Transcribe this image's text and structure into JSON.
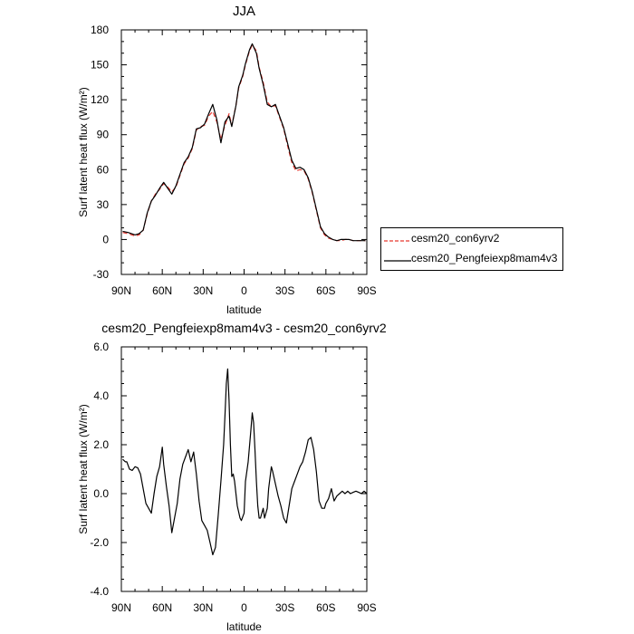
{
  "chart_data": [
    {
      "type": "line",
      "title": "JJA",
      "xlabel": "latitude",
      "ylabel": "Surf latent heat flux (W/m²)",
      "xlim": [
        90,
        -90
      ],
      "ylim": [
        -30,
        180
      ],
      "x_ticks": [
        90,
        60,
        30,
        0,
        -30,
        -60,
        -90
      ],
      "x_tick_labels": [
        "90N",
        "60N",
        "30N",
        "0",
        "30S",
        "60S",
        "90S"
      ],
      "y_ticks": [
        -30,
        0,
        30,
        60,
        90,
        120,
        150,
        180
      ],
      "y_tick_labels": [
        "-30",
        "0",
        "30",
        "60",
        "90",
        "120",
        "150",
        "180"
      ],
      "grid": false,
      "legend": "outside-right",
      "series": [
        {
          "name": "cesm20_con6yrv2",
          "color": "#e8372e",
          "dash": "dashed",
          "x": [
            89,
            85,
            80,
            77,
            74,
            71,
            68,
            65,
            62,
            59,
            56,
            53,
            50,
            47,
            44,
            41,
            38,
            35,
            32,
            29,
            26,
            23,
            20,
            17,
            14,
            11,
            9,
            6,
            4,
            1,
            -1,
            -4,
            -6,
            -9,
            -11,
            -14,
            -17,
            -20,
            -23,
            -26,
            -29,
            -32,
            -35,
            -38,
            -41,
            -44,
            -47,
            -50,
            -53,
            -56,
            -59,
            -62,
            -65,
            -68,
            -71,
            -74,
            -77,
            -80,
            -85,
            -89
          ],
          "y": [
            6,
            5,
            3,
            4,
            8,
            22,
            33,
            39,
            43,
            48,
            45,
            41,
            45,
            55,
            65,
            70,
            78,
            94,
            97,
            98,
            106,
            110,
            101,
            86,
            98,
            108,
            98,
            115,
            130,
            140,
            150,
            162,
            167,
            162,
            148,
            135,
            118,
            114,
            115,
            105,
            95,
            80,
            66,
            59,
            60,
            59,
            52,
            40,
            25,
            10,
            4,
            1,
            0,
            -1,
            -1,
            0,
            0,
            -1,
            -1,
            -1
          ]
        },
        {
          "name": "cesm20_Pengfeiexp8mam4v3",
          "color": "#000000",
          "dash": "solid",
          "x": [
            89,
            85,
            80,
            77,
            74,
            71,
            68,
            65,
            62,
            59,
            56,
            53,
            50,
            47,
            44,
            41,
            38,
            35,
            32,
            29,
            26,
            23,
            20,
            17,
            14,
            11,
            9,
            6,
            4,
            1,
            -1,
            -4,
            -6,
            -9,
            -11,
            -14,
            -17,
            -20,
            -23,
            -26,
            -29,
            -32,
            -35,
            -38,
            -41,
            -44,
            -47,
            -50,
            -53,
            -56,
            -59,
            -62,
            -65,
            -68,
            -71,
            -74,
            -77,
            -80,
            -85,
            -89
          ],
          "y": [
            7,
            6,
            4,
            5,
            8,
            23,
            33,
            38,
            44,
            49,
            44,
            39,
            46,
            56,
            66,
            71,
            79,
            95,
            96,
            99,
            108,
            116,
            103,
            83,
            101,
            106,
            97,
            115,
            131,
            141,
            151,
            163,
            168,
            160,
            147,
            133,
            116,
            114,
            116,
            106,
            96,
            82,
            68,
            61,
            62,
            60,
            53,
            41,
            26,
            11,
            5,
            2,
            0,
            -1,
            0,
            0,
            0,
            -1,
            -1,
            -1
          ]
        }
      ]
    },
    {
      "type": "line",
      "title": "cesm20_Pengfeiexp8mam4v3 - cesm20_con6yrv2",
      "xlabel": "latitude",
      "ylabel": "Surf latent heat flux (W/m²)",
      "xlim": [
        90,
        -90
      ],
      "ylim": [
        -4.0,
        6.0
      ],
      "x_ticks": [
        90,
        60,
        30,
        0,
        -30,
        -60,
        -90
      ],
      "x_tick_labels": [
        "90N",
        "60N",
        "30N",
        "0",
        "30S",
        "60S",
        "90S"
      ],
      "y_ticks": [
        -4.0,
        -2.0,
        0.0,
        2.0,
        4.0,
        6.0
      ],
      "y_tick_labels": [
        "-4.0",
        "-2.0",
        "0.0",
        "2.0",
        "4.0",
        "6.0"
      ],
      "grid": false,
      "series": [
        {
          "color": "#000000",
          "x": [
            89,
            87,
            86,
            84,
            82,
            80,
            78,
            76,
            74,
            72,
            70,
            68,
            66,
            64,
            62,
            60,
            59,
            57,
            55,
            53,
            51,
            49,
            47,
            45,
            43,
            41,
            39,
            37,
            35,
            33,
            31,
            29,
            27,
            25,
            23,
            21,
            19,
            17,
            15,
            14,
            13,
            12,
            11,
            10,
            9,
            8,
            7,
            5,
            3,
            2,
            0,
            -1,
            -3,
            -5,
            -6,
            -7,
            -8,
            -9,
            -10,
            -11,
            -12,
            -14,
            -15,
            -17,
            -18,
            -20,
            -21,
            -23,
            -25,
            -27,
            -29,
            -31,
            -33,
            -35,
            -37,
            -39,
            -41,
            -43,
            -45,
            -47,
            -49,
            -51,
            -53,
            -55,
            -57,
            -59,
            -60,
            -62,
            -64,
            -66,
            -68,
            -70,
            -72,
            -74,
            -76,
            -78,
            -80,
            -82,
            -84,
            -86,
            -88,
            -90
          ],
          "y": [
            1.4,
            1.3,
            1.3,
            1.0,
            0.95,
            1.1,
            1.05,
            0.8,
            0.2,
            -0.4,
            -0.6,
            -0.8,
            0.0,
            0.7,
            1.1,
            1.9,
            1.2,
            0.3,
            -0.5,
            -1.6,
            -1.0,
            -0.4,
            0.6,
            1.2,
            1.5,
            1.8,
            1.3,
            1.7,
            0.8,
            -0.3,
            -1.1,
            -1.3,
            -1.5,
            -2.0,
            -2.5,
            -2.2,
            -0.9,
            0.5,
            2.0,
            3.2,
            4.5,
            5.1,
            3.8,
            2.0,
            0.7,
            0.8,
            0.5,
            -0.5,
            -1.0,
            -1.1,
            -0.8,
            0.5,
            1.3,
            2.6,
            3.3,
            2.9,
            1.8,
            0.5,
            -0.5,
            -1.0,
            -1.0,
            -0.6,
            -1.0,
            -0.6,
            0.2,
            1.1,
            0.9,
            0.4,
            -0.1,
            -0.5,
            -1.0,
            -1.2,
            -0.5,
            0.2,
            0.5,
            0.8,
            1.1,
            1.3,
            1.7,
            2.2,
            2.3,
            1.8,
            0.9,
            -0.3,
            -0.6,
            -0.6,
            -0.4,
            -0.2,
            0.2,
            -0.3,
            -0.1,
            0.0,
            0.1,
            0.0,
            0.1,
            0.0,
            0.05,
            0.1,
            0.05,
            0.0,
            0.1,
            0.0
          ]
        }
      ]
    }
  ]
}
